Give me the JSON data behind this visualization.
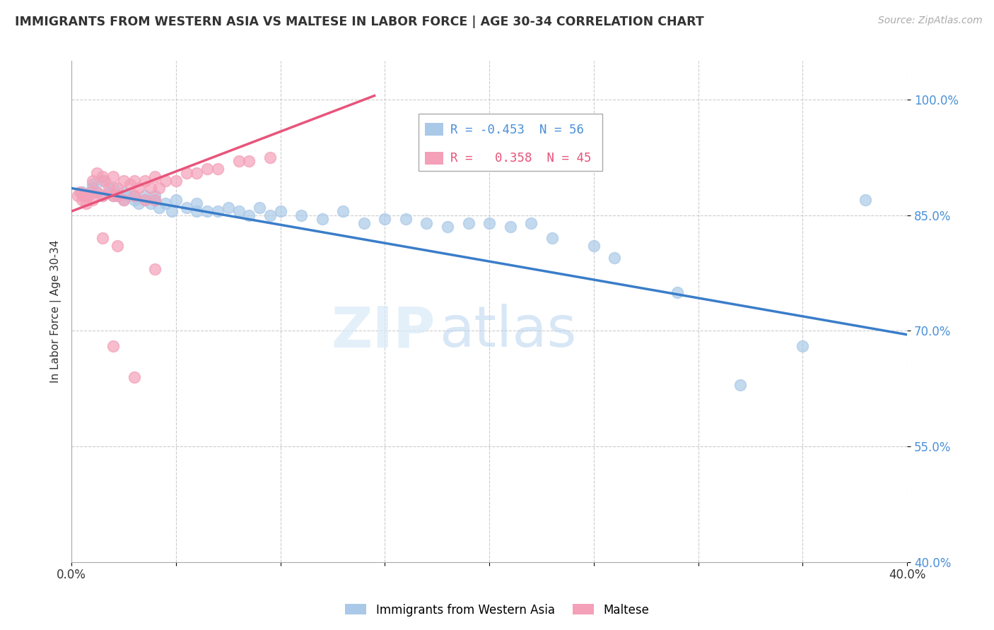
{
  "title": "IMMIGRANTS FROM WESTERN ASIA VS MALTESE IN LABOR FORCE | AGE 30-34 CORRELATION CHART",
  "source": "Source: ZipAtlas.com",
  "ylabel": "In Labor Force | Age 30-34",
  "xlim": [
    0.0,
    0.4
  ],
  "ylim": [
    0.4,
    1.05
  ],
  "yticks": [
    0.4,
    0.55,
    0.7,
    0.85,
    1.0
  ],
  "ytick_labels": [
    "40.0%",
    "55.0%",
    "70.0%",
    "85.0%",
    "100.0%"
  ],
  "xtick_labels": [
    "0.0%",
    "",
    "",
    "",
    "",
    "",
    "",
    "",
    "40.0%"
  ],
  "blue_color": "#aac9e8",
  "pink_color": "#f4a0b8",
  "blue_line_color": "#3a7dc9",
  "pink_line_color": "#e8547a",
  "legend_blue_R": "-0.453",
  "legend_blue_N": "56",
  "legend_pink_R": "0.358",
  "legend_pink_N": "45",
  "watermark_zip": "ZIP",
  "watermark_atlas": "atlas",
  "blue_line_x0": 0.0,
  "blue_line_y0": 0.885,
  "blue_line_x1": 0.4,
  "blue_line_y1": 0.695,
  "pink_line_x0": 0.0,
  "pink_line_y0": 0.855,
  "pink_line_x1": 0.145,
  "pink_line_y1": 1.005,
  "blue_scatter_x": [
    0.005,
    0.007,
    0.01,
    0.01,
    0.012,
    0.015,
    0.015,
    0.018,
    0.02,
    0.02,
    0.022,
    0.025,
    0.025,
    0.027,
    0.03,
    0.03,
    0.032,
    0.035,
    0.035,
    0.038,
    0.04,
    0.04,
    0.042,
    0.045,
    0.048,
    0.05,
    0.055,
    0.06,
    0.06,
    0.065,
    0.07,
    0.075,
    0.08,
    0.085,
    0.09,
    0.095,
    0.1,
    0.11,
    0.12,
    0.13,
    0.14,
    0.15,
    0.16,
    0.17,
    0.18,
    0.19,
    0.2,
    0.21,
    0.22,
    0.23,
    0.25,
    0.26,
    0.29,
    0.32,
    0.35,
    0.38
  ],
  "blue_scatter_y": [
    0.88,
    0.875,
    0.885,
    0.89,
    0.88,
    0.875,
    0.895,
    0.88,
    0.875,
    0.885,
    0.875,
    0.87,
    0.88,
    0.875,
    0.87,
    0.875,
    0.865,
    0.87,
    0.875,
    0.865,
    0.87,
    0.875,
    0.86,
    0.865,
    0.855,
    0.87,
    0.86,
    0.865,
    0.855,
    0.855,
    0.855,
    0.86,
    0.855,
    0.85,
    0.86,
    0.85,
    0.855,
    0.85,
    0.845,
    0.855,
    0.84,
    0.845,
    0.845,
    0.84,
    0.835,
    0.84,
    0.84,
    0.835,
    0.84,
    0.82,
    0.81,
    0.795,
    0.75,
    0.63,
    0.68,
    0.87
  ],
  "pink_scatter_x": [
    0.003,
    0.004,
    0.005,
    0.006,
    0.007,
    0.008,
    0.009,
    0.01,
    0.01,
    0.012,
    0.012,
    0.015,
    0.015,
    0.016,
    0.018,
    0.02,
    0.02,
    0.022,
    0.022,
    0.025,
    0.025,
    0.028,
    0.03,
    0.03,
    0.032,
    0.035,
    0.035,
    0.038,
    0.04,
    0.04,
    0.042,
    0.045,
    0.05,
    0.055,
    0.06,
    0.065,
    0.07,
    0.08,
    0.085,
    0.095,
    0.015,
    0.022,
    0.04,
    0.02,
    0.03
  ],
  "pink_scatter_y": [
    0.875,
    0.88,
    0.87,
    0.875,
    0.865,
    0.875,
    0.88,
    0.895,
    0.87,
    0.905,
    0.88,
    0.9,
    0.875,
    0.895,
    0.885,
    0.9,
    0.875,
    0.885,
    0.875,
    0.895,
    0.87,
    0.89,
    0.895,
    0.875,
    0.885,
    0.895,
    0.87,
    0.885,
    0.9,
    0.87,
    0.885,
    0.895,
    0.895,
    0.905,
    0.905,
    0.91,
    0.91,
    0.92,
    0.92,
    0.925,
    0.82,
    0.81,
    0.78,
    0.68,
    0.64
  ]
}
